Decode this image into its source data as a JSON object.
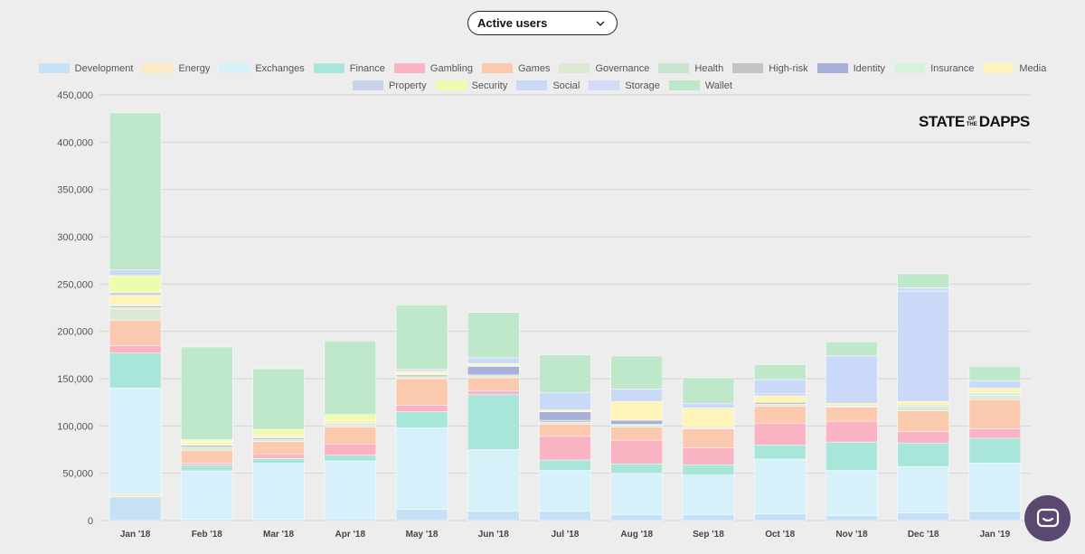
{
  "selector": {
    "label": "Active users"
  },
  "logo": {
    "part1": "STATE",
    "part2": "OF",
    "part3": "THE",
    "part4": "DAPPS"
  },
  "chart_data": {
    "type": "bar",
    "stacked": true,
    "title": "Active users",
    "xlabel": "",
    "ylabel": "",
    "ylim": [
      0,
      450000
    ],
    "y_ticks": [
      0,
      50000,
      100000,
      150000,
      200000,
      250000,
      300000,
      350000,
      400000,
      450000
    ],
    "y_tick_labels": [
      "0",
      "50,000",
      "100,000",
      "150,000",
      "200,000",
      "250,000",
      "300,000",
      "350,000",
      "400,000",
      "450,000"
    ],
    "grid": true,
    "legend_position": "top-center",
    "categories": [
      "Jan '18",
      "Feb '18",
      "Mar '18",
      "Apr '18",
      "May '18",
      "Jun '18",
      "Jul '18",
      "Aug '18",
      "Sep '18",
      "Oct '18",
      "Nov '18",
      "Dec '18",
      "Jan '19"
    ],
    "series": [
      {
        "name": "Development",
        "color": "#c6e1f5",
        "values": [
          25000,
          1500,
          1500,
          2000,
          12000,
          10000,
          10000,
          6000,
          6000,
          7000,
          5000,
          8000,
          10000
        ]
      },
      {
        "name": "Energy",
        "color": "#fde9c6",
        "values": [
          3000,
          0,
          0,
          0,
          0,
          0,
          0,
          0,
          0,
          0,
          0,
          0,
          0
        ]
      },
      {
        "name": "Exchanges",
        "color": "#d6f1fa",
        "values": [
          112000,
          51000,
          59000,
          61000,
          86000,
          65000,
          43000,
          44000,
          42000,
          58000,
          48000,
          49000,
          51000
        ]
      },
      {
        "name": "Finance",
        "color": "#a8e6da",
        "values": [
          37000,
          6000,
          5000,
          6000,
          17000,
          58000,
          11000,
          10000,
          11000,
          15000,
          30000,
          25000,
          26000
        ]
      },
      {
        "name": "Gambling",
        "color": "#f9b3c2",
        "values": [
          8000,
          2000,
          5000,
          12000,
          7000,
          4000,
          25000,
          25000,
          18000,
          23000,
          22000,
          12000,
          10000
        ]
      },
      {
        "name": "Games",
        "color": "#fac9ae",
        "values": [
          27000,
          14000,
          13000,
          18000,
          28000,
          14000,
          13000,
          14000,
          20000,
          18000,
          15000,
          22000,
          31000
        ]
      },
      {
        "name": "Governance",
        "color": "#dcead4",
        "values": [
          12000,
          3000,
          2000,
          2000,
          2000,
          2000,
          2000,
          2000,
          1000,
          2000,
          1000,
          5000,
          3000
        ]
      },
      {
        "name": "Health",
        "color": "#c8e3cf",
        "values": [
          1000,
          0,
          0,
          0,
          0,
          0,
          0,
          0,
          0,
          0,
          0,
          0,
          0
        ]
      },
      {
        "name": "High-risk",
        "color": "#c4c4c4",
        "values": [
          2000,
          2000,
          2000,
          1000,
          2000,
          1000,
          2000,
          1000,
          1000,
          2000,
          1000,
          1000,
          1000
        ]
      },
      {
        "name": "Identity",
        "color": "#a7b0d9",
        "values": [
          0,
          0,
          0,
          0,
          0,
          9000,
          9000,
          4000,
          0,
          0,
          0,
          0,
          0
        ]
      },
      {
        "name": "Insurance",
        "color": "#d6f2d9",
        "values": [
          1000,
          1000,
          1000,
          1000,
          1000,
          1000,
          0,
          0,
          0,
          0,
          0,
          0,
          3000
        ]
      },
      {
        "name": "Media",
        "color": "#fef3b8",
        "values": [
          10000,
          3000,
          3000,
          3000,
          3000,
          2000,
          2000,
          20000,
          20000,
          7000,
          2000,
          4000,
          5000
        ]
      },
      {
        "name": "Property",
        "color": "#c9d3e8",
        "values": [
          3000,
          0,
          0,
          0,
          0,
          0,
          0,
          0,
          0,
          2000,
          0,
          0,
          0
        ]
      },
      {
        "name": "Security",
        "color": "#eefcb0",
        "values": [
          18000,
          2000,
          5000,
          6000,
          0,
          0,
          0,
          0,
          0,
          0,
          0,
          0,
          0
        ]
      },
      {
        "name": "Social",
        "color": "#cad9f8",
        "values": [
          6000,
          0,
          0,
          0,
          2000,
          6000,
          18000,
          13000,
          5000,
          15000,
          50000,
          116000,
          8000
        ]
      },
      {
        "name": "Storage",
        "color": "#d2dcf8",
        "values": [
          0,
          0,
          0,
          0,
          0,
          0,
          0,
          0,
          0,
          0,
          0,
          4000,
          0
        ]
      },
      {
        "name": "Wallet",
        "color": "#bfe8cb",
        "values": [
          166000,
          98000,
          64000,
          78000,
          68000,
          48000,
          40000,
          35000,
          27000,
          16000,
          15000,
          15000,
          15000
        ]
      }
    ]
  }
}
